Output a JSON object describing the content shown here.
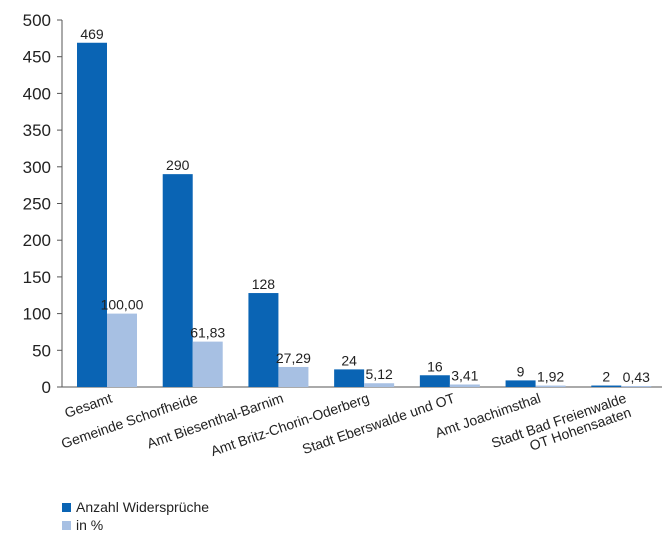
{
  "chart_data": {
    "type": "bar",
    "categories": [
      [
        "Gesamt"
      ],
      [
        "Gemeinde Schorfheide"
      ],
      [
        "Amt Biesenthal-Barnim"
      ],
      [
        "Amt Britz-Chorin-Oderberg"
      ],
      [
        "Stadt Eberswalde und OT"
      ],
      [
        "Amt Joachimsthal"
      ],
      [
        "Stadt Bad Freienwalde",
        "OT Hohensaaten"
      ]
    ],
    "series": [
      {
        "name": "Anzahl Widersprüche",
        "color": "#0a64b4",
        "values": [
          469,
          290,
          128,
          24,
          16,
          9,
          2
        ],
        "labels": [
          "469",
          "290",
          "128",
          "24",
          "16",
          "9",
          "2"
        ]
      },
      {
        "name": "in %",
        "color": "#a7c0e3",
        "values": [
          100.0,
          61.83,
          27.29,
          5.12,
          3.41,
          1.92,
          0.43
        ],
        "labels": [
          "100,00",
          "61,83",
          "27,29",
          "5,12",
          "3,41",
          "1,92",
          "0,43"
        ]
      }
    ],
    "ylim": [
      0,
      500
    ],
    "yticks": [
      0,
      50,
      100,
      150,
      200,
      250,
      300,
      350,
      400,
      450,
      500
    ],
    "grid": false,
    "legend_position": "bottom-left",
    "title": "",
    "xlabel": "",
    "ylabel": ""
  }
}
